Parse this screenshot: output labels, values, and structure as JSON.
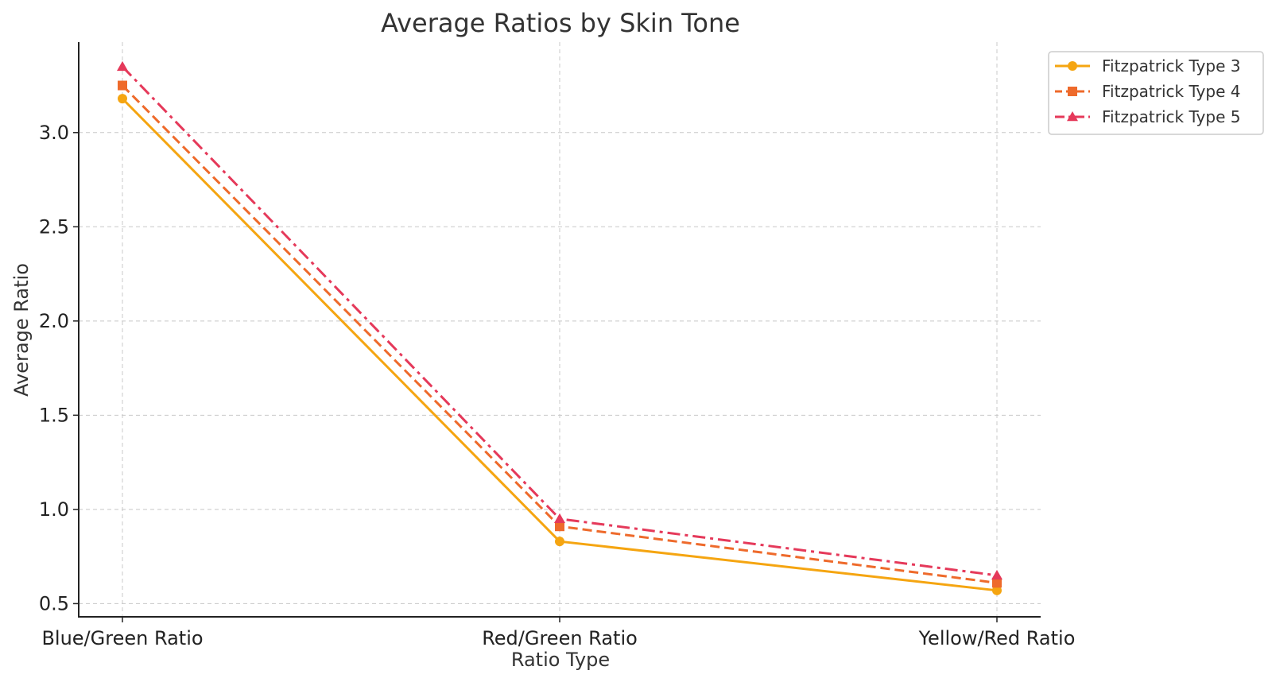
{
  "chart_data": {
    "type": "line",
    "title": "Average Ratios by Skin Tone",
    "xlabel": "Ratio Type",
    "ylabel": "Average Ratio",
    "categories": [
      "Blue/Green Ratio",
      "Red/Green Ratio",
      "Yellow/Red Ratio"
    ],
    "ylim": [
      0.43,
      3.48
    ],
    "yticks": [
      0.5,
      1.0,
      1.5,
      2.0,
      2.5,
      3.0
    ],
    "ytick_labels": [
      "0.5",
      "1.0",
      "1.5",
      "2.0",
      "2.5",
      "3.0"
    ],
    "grid": true,
    "legend_position": "top-right",
    "series": [
      {
        "name": "Fitzpatrick Type 3",
        "values": [
          3.18,
          0.83,
          0.57
        ],
        "color": "#f5a511",
        "marker": "circle",
        "linestyle": "solid"
      },
      {
        "name": "Fitzpatrick Type 4",
        "values": [
          3.25,
          0.91,
          0.61
        ],
        "color": "#ee6a2b",
        "marker": "square",
        "linestyle": "dashed"
      },
      {
        "name": "Fitzpatrick Type 5",
        "values": [
          3.35,
          0.95,
          0.65
        ],
        "color": "#e5395a",
        "marker": "triangle",
        "linestyle": "dashdot"
      }
    ]
  }
}
